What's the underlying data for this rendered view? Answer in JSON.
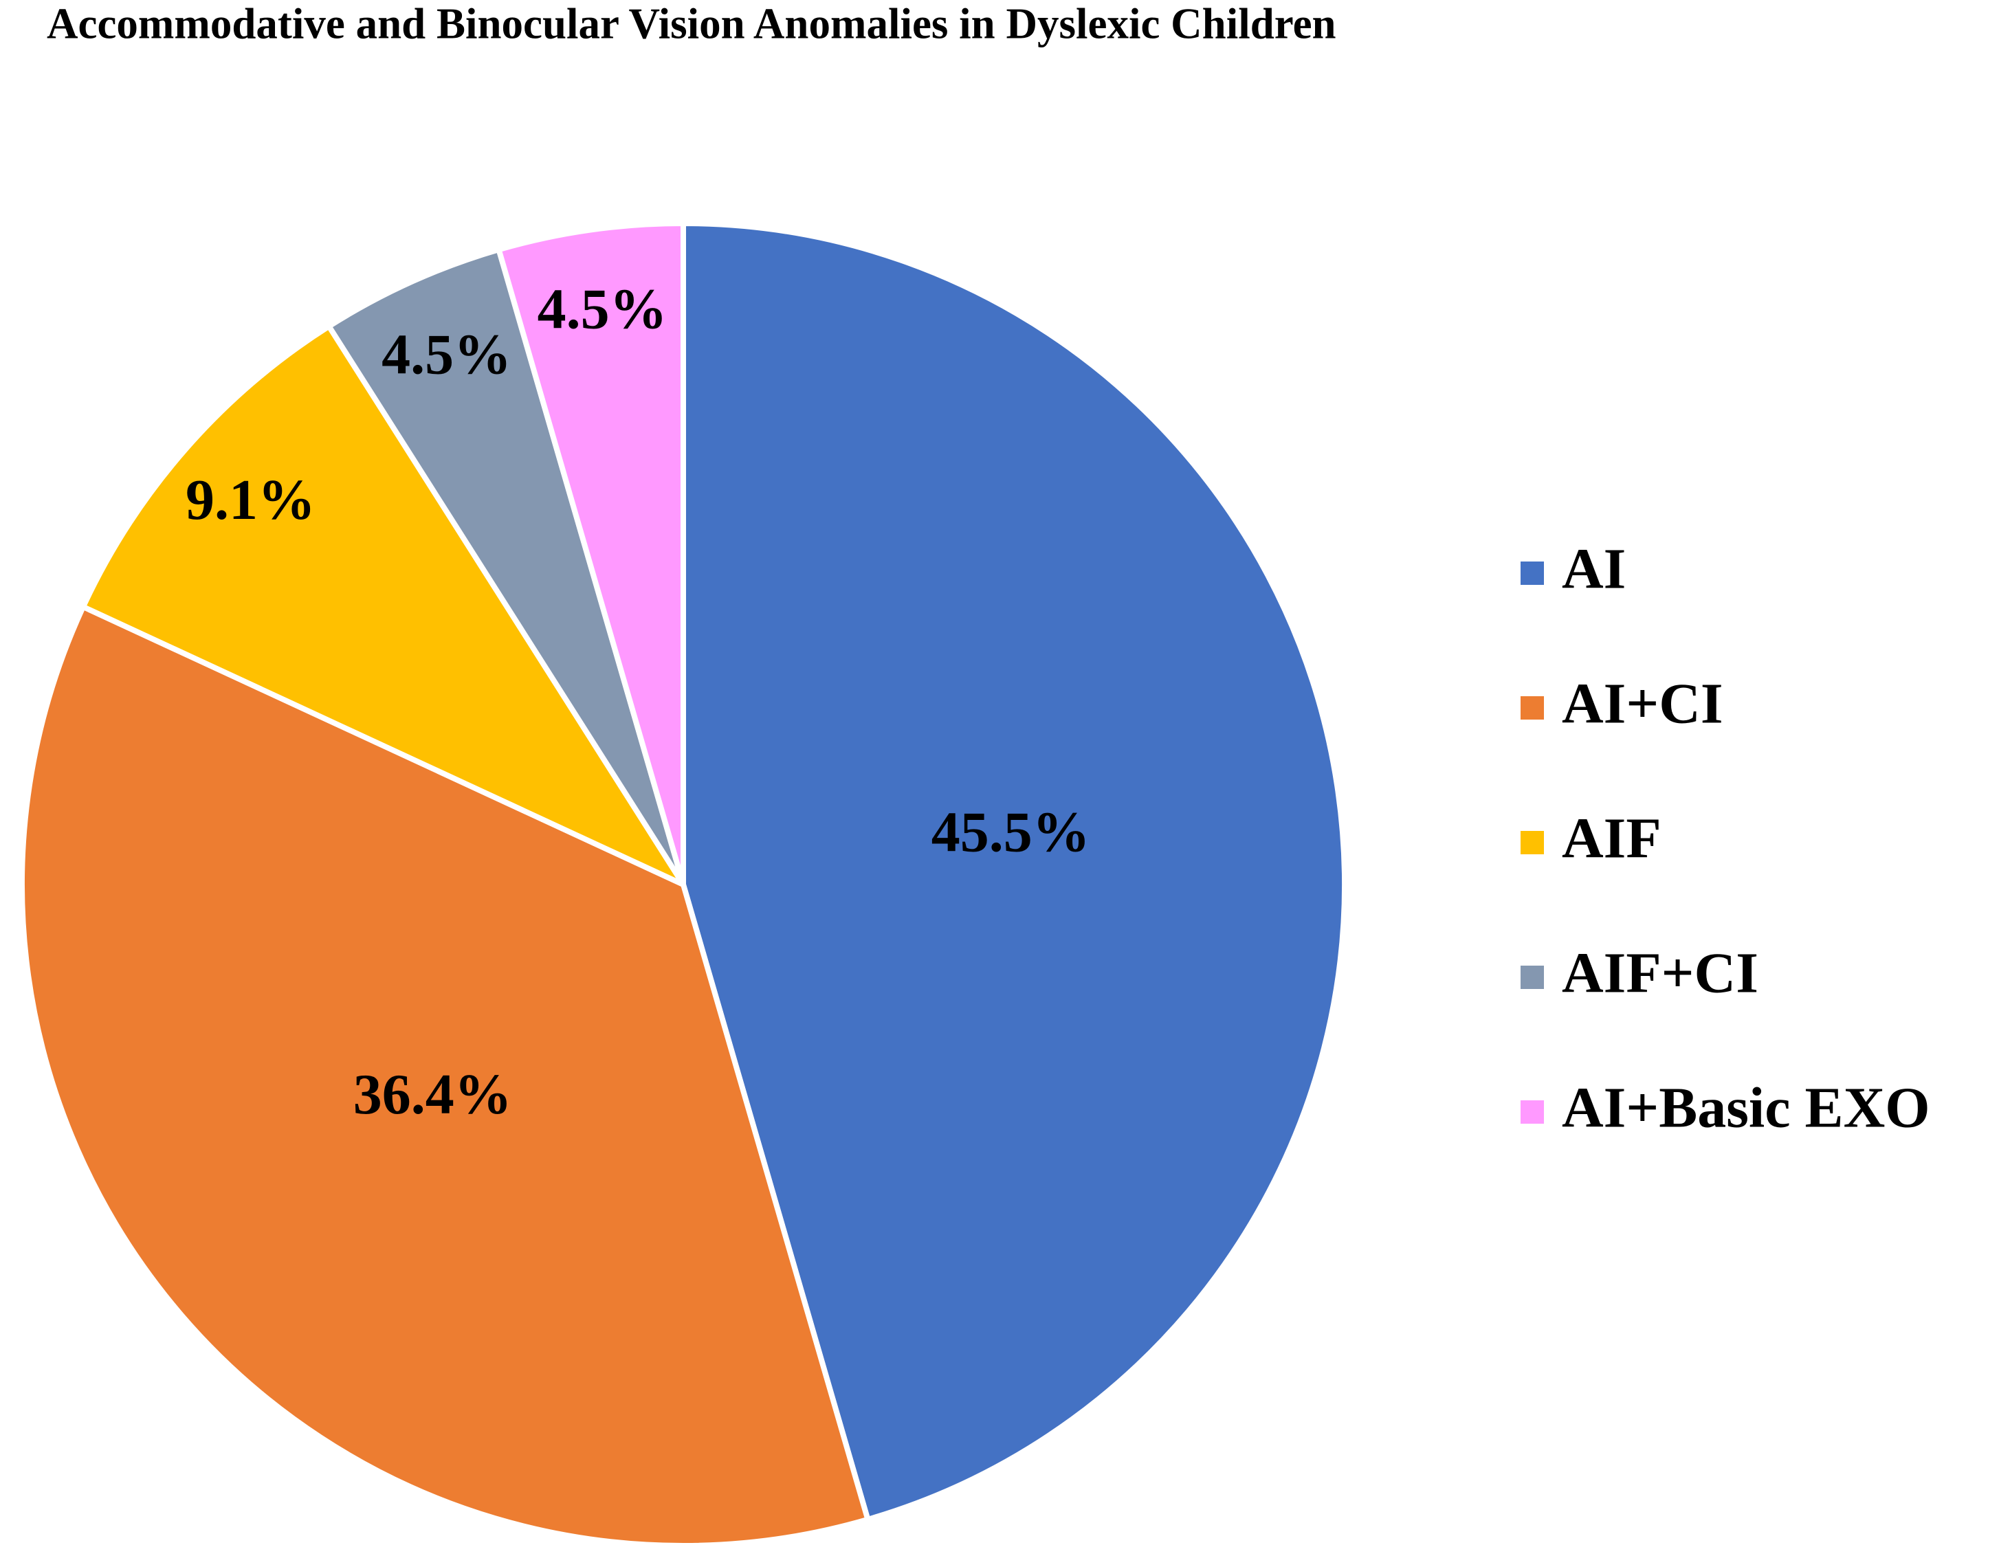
{
  "chart_data": {
    "type": "pie",
    "title": "Accommodative and Binocular Vision Anomalies in Dyslexic Children",
    "categories": [
      "AI",
      "AI+CI",
      "AIF",
      "AIF+CI",
      "AI+Basic EXO"
    ],
    "values": [
      45.5,
      36.4,
      9.1,
      4.5,
      4.5
    ],
    "value_labels": [
      "45.5%",
      "36.4%",
      "9.1%",
      "4.5%",
      "4.5%"
    ],
    "colors": [
      "#4472c4",
      "#ed7d31",
      "#ffc000",
      "#8497b0",
      "#ff99ff"
    ],
    "legend": "right"
  }
}
